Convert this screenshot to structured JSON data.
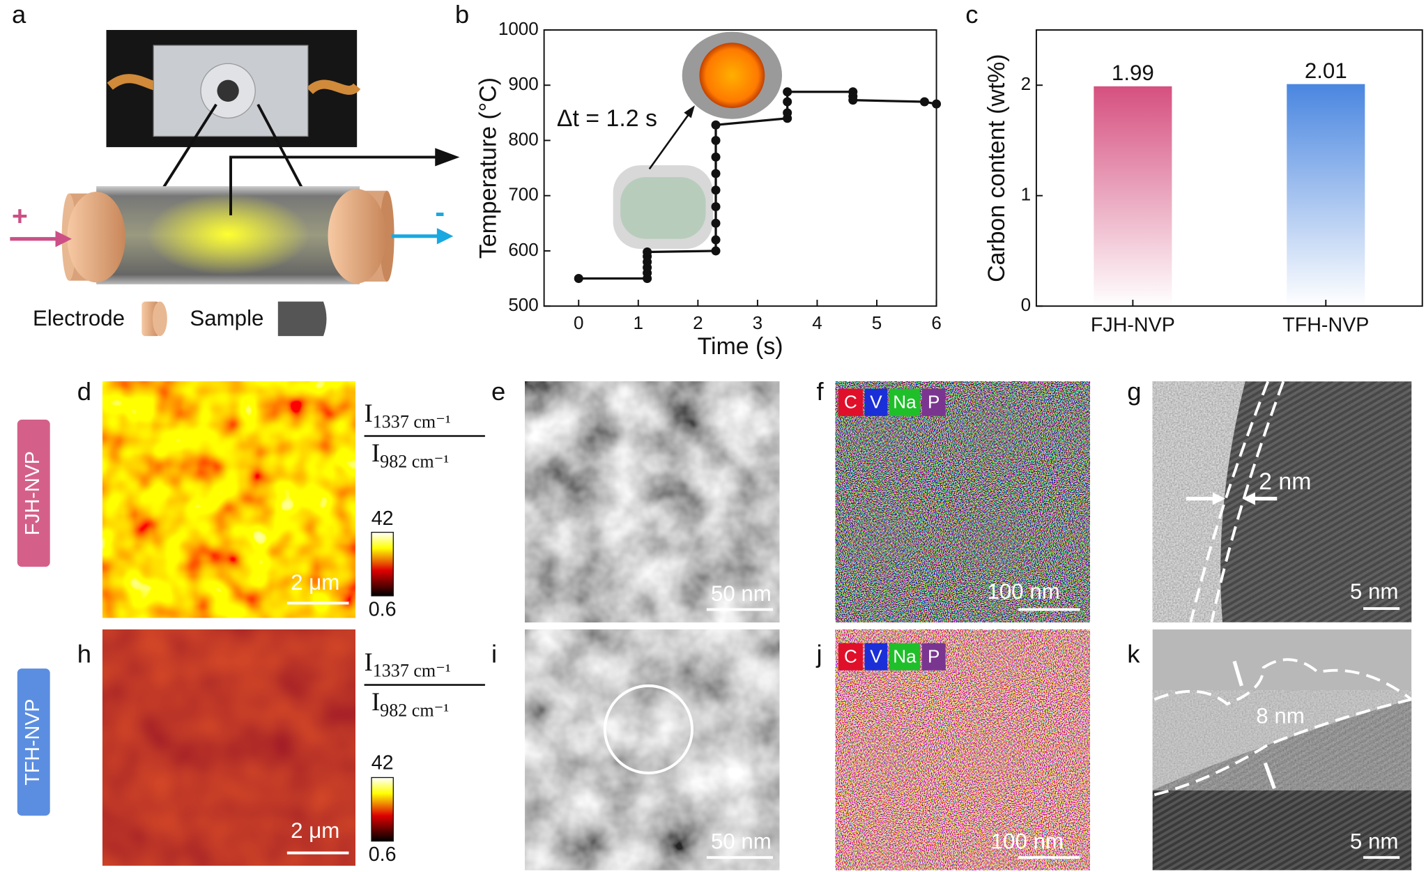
{
  "panel_labels": [
    "a",
    "b",
    "c",
    "d",
    "e",
    "f",
    "g",
    "h",
    "i",
    "j",
    "k"
  ],
  "row_labels": [
    "FJH-NVP",
    "TFH-NVP"
  ],
  "schematic": {
    "plus": "+",
    "minus": "-",
    "electrode": "Electrode",
    "sample": "Sample"
  },
  "ratio_label": {
    "num_symbol": "I",
    "num_sub": "1337 cm⁻¹",
    "den_symbol": "I",
    "den_sub": "982 cm⁻¹"
  },
  "colorbar_ticks": [
    42,
    0.6
  ],
  "scale_bars": {
    "raman": "2 μm",
    "tem": "50 nm",
    "eds": "100 nm",
    "hrtem": "5 nm"
  },
  "eds_legend": [
    "C",
    "V",
    "Na",
    "P"
  ],
  "annotations": {
    "g": "2 nm",
    "k": "8 nm"
  },
  "chart_data": [
    {
      "type": "line",
      "x_label": "Time (s)",
      "y_label": "Temperature (°C)",
      "annotation": "Δt = 1.2 s",
      "x": [
        0,
        1.15,
        1.15,
        1.15,
        1.15,
        1.15,
        1.15,
        2.3,
        2.3,
        2.3,
        2.3,
        2.3,
        2.3,
        2.3,
        2.3,
        2.3,
        3.5,
        3.5,
        3.5,
        3.5,
        4.6,
        4.6,
        4.6,
        5.8,
        6
      ],
      "values": [
        550,
        550,
        560,
        570,
        580,
        590,
        598,
        600,
        620,
        650,
        680,
        710,
        740,
        770,
        800,
        828,
        840,
        850,
        870,
        888,
        888,
        880,
        873,
        870,
        866
      ],
      "color": "#111111",
      "xlim": [
        -0.58,
        6
      ],
      "ylim": [
        500,
        1000
      ],
      "xticks": [
        0,
        1,
        2,
        3,
        4,
        5,
        6
      ],
      "yticks": [
        500,
        600,
        700,
        800,
        900,
        1000
      ]
    },
    {
      "type": "bar",
      "y_label": "Carbon content (wt%)",
      "categories": [
        "FJH-NVP",
        "TFH-NVP"
      ],
      "values": [
        1.99,
        2.01
      ],
      "colors": [
        "#d6507f",
        "#4a86e0"
      ],
      "ylim": [
        0,
        2.5
      ],
      "yticks": [
        0,
        1,
        2
      ]
    }
  ]
}
